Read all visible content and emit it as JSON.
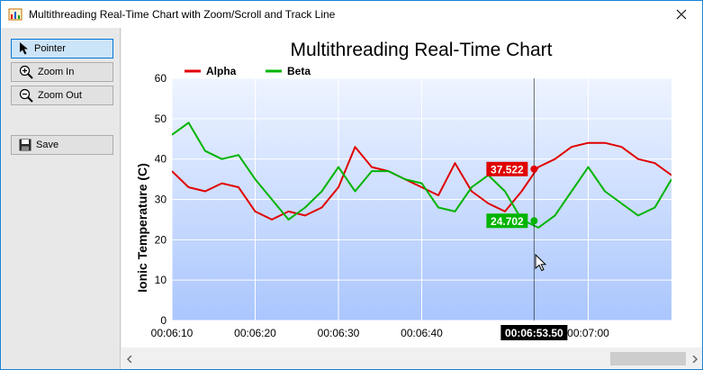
{
  "window": {
    "title": "Multithreading Real-Time Chart with Zoom/Scroll and Track Line"
  },
  "toolbar": {
    "pointer_label": "Pointer",
    "zoom_in_label": "Zoom In",
    "zoom_out_label": "Zoom Out",
    "save_label": "Save",
    "active_tool": "Pointer"
  },
  "colors": {
    "alpha": "#e00000",
    "beta": "#00b400",
    "window_border": "#1883d7",
    "plot_top": "#eef4ff",
    "plot_bottom": "#aac6fe"
  },
  "icons": [
    "app-icon",
    "close-icon",
    "pointer-icon",
    "zoom-in-icon",
    "zoom-out-icon",
    "save-icon",
    "chevron-left-icon",
    "chevron-right-icon",
    "mouse-cursor-icon"
  ],
  "chart_data": {
    "type": "line",
    "title": "Multithreading Real-Time Chart",
    "ylabel": "Ionic Temperature (C)",
    "xlabel": "",
    "ylim": [
      0,
      60
    ],
    "yticks": [
      "0",
      "10",
      "20",
      "30",
      "40",
      "50",
      "60"
    ],
    "x_range_seconds": [
      370,
      388.3
    ],
    "xticks": [
      {
        "t": 370,
        "label": "00:06:10"
      },
      {
        "t": 380,
        "label": "00:06:20"
      },
      {
        "t": 390,
        "label": "00:06:30"
      },
      {
        "t": 400,
        "label": "00:06:40"
      },
      {
        "t": 420,
        "label": "00:07:00"
      }
    ],
    "grid": true,
    "legend_position": "top-left",
    "series": [
      {
        "name": "Alpha",
        "color": "#e00000",
        "x_labels": [
          "00:06:10",
          "00:06:12",
          "00:06:14",
          "00:06:16",
          "00:06:18",
          "00:06:20",
          "00:06:22",
          "00:06:24",
          "00:06:26",
          "00:06:28",
          "00:06:30",
          "00:06:32",
          "00:06:34",
          "00:06:36",
          "00:06:38",
          "00:06:40",
          "00:06:42",
          "00:06:44",
          "00:06:46",
          "00:06:48",
          "00:06:50",
          "00:06:52",
          "00:06:54",
          "00:06:56",
          "00:06:58",
          "00:07:00",
          "00:07:02",
          "00:07:04",
          "00:07:06",
          "00:07:08",
          "00:07:10"
        ],
        "x": [
          370,
          372,
          374,
          376,
          378,
          380,
          382,
          384,
          386,
          388,
          390,
          392,
          394,
          396,
          398,
          400,
          402,
          404,
          406,
          408,
          410,
          412,
          414,
          416,
          418,
          420,
          422,
          424,
          426,
          428,
          430
        ],
        "values": [
          37,
          33,
          32,
          34,
          33,
          27,
          25,
          27,
          26,
          28,
          33,
          43,
          38,
          37,
          35,
          33,
          31,
          39,
          32,
          29,
          27,
          32,
          38,
          40,
          43,
          44,
          44,
          43,
          40,
          39,
          36
        ]
      },
      {
        "name": "Beta",
        "color": "#00b400",
        "x_labels": [
          "00:06:10",
          "00:06:12",
          "00:06:14",
          "00:06:16",
          "00:06:18",
          "00:06:20",
          "00:06:22",
          "00:06:24",
          "00:06:26",
          "00:06:28",
          "00:06:30",
          "00:06:32",
          "00:06:34",
          "00:06:36",
          "00:06:38",
          "00:06:40",
          "00:06:42",
          "00:06:44",
          "00:06:46",
          "00:06:48",
          "00:06:50",
          "00:06:52",
          "00:06:54",
          "00:06:56",
          "00:06:58",
          "00:07:00",
          "00:07:02",
          "00:07:04",
          "00:07:06",
          "00:07:08",
          "00:07:10"
        ],
        "x": [
          370,
          372,
          374,
          376,
          378,
          380,
          382,
          384,
          386,
          388,
          390,
          392,
          394,
          396,
          398,
          400,
          402,
          404,
          406,
          408,
          410,
          412,
          414,
          416,
          418,
          420,
          422,
          424,
          426,
          428,
          430
        ],
        "values": [
          46,
          49,
          42,
          40,
          41,
          35,
          30,
          25,
          28,
          32,
          38,
          32,
          37,
          37,
          35,
          34,
          28,
          27,
          33,
          36,
          32,
          25,
          23,
          26,
          32,
          38,
          32,
          29,
          26,
          28,
          35
        ]
      }
    ],
    "track_line": {
      "label": "00:06:53.50",
      "t": 413.5,
      "values": [
        {
          "series": "Alpha",
          "label": "37.522",
          "value": 37.522
        },
        {
          "series": "Beta",
          "label": "24.702",
          "value": 24.702
        }
      ]
    }
  }
}
